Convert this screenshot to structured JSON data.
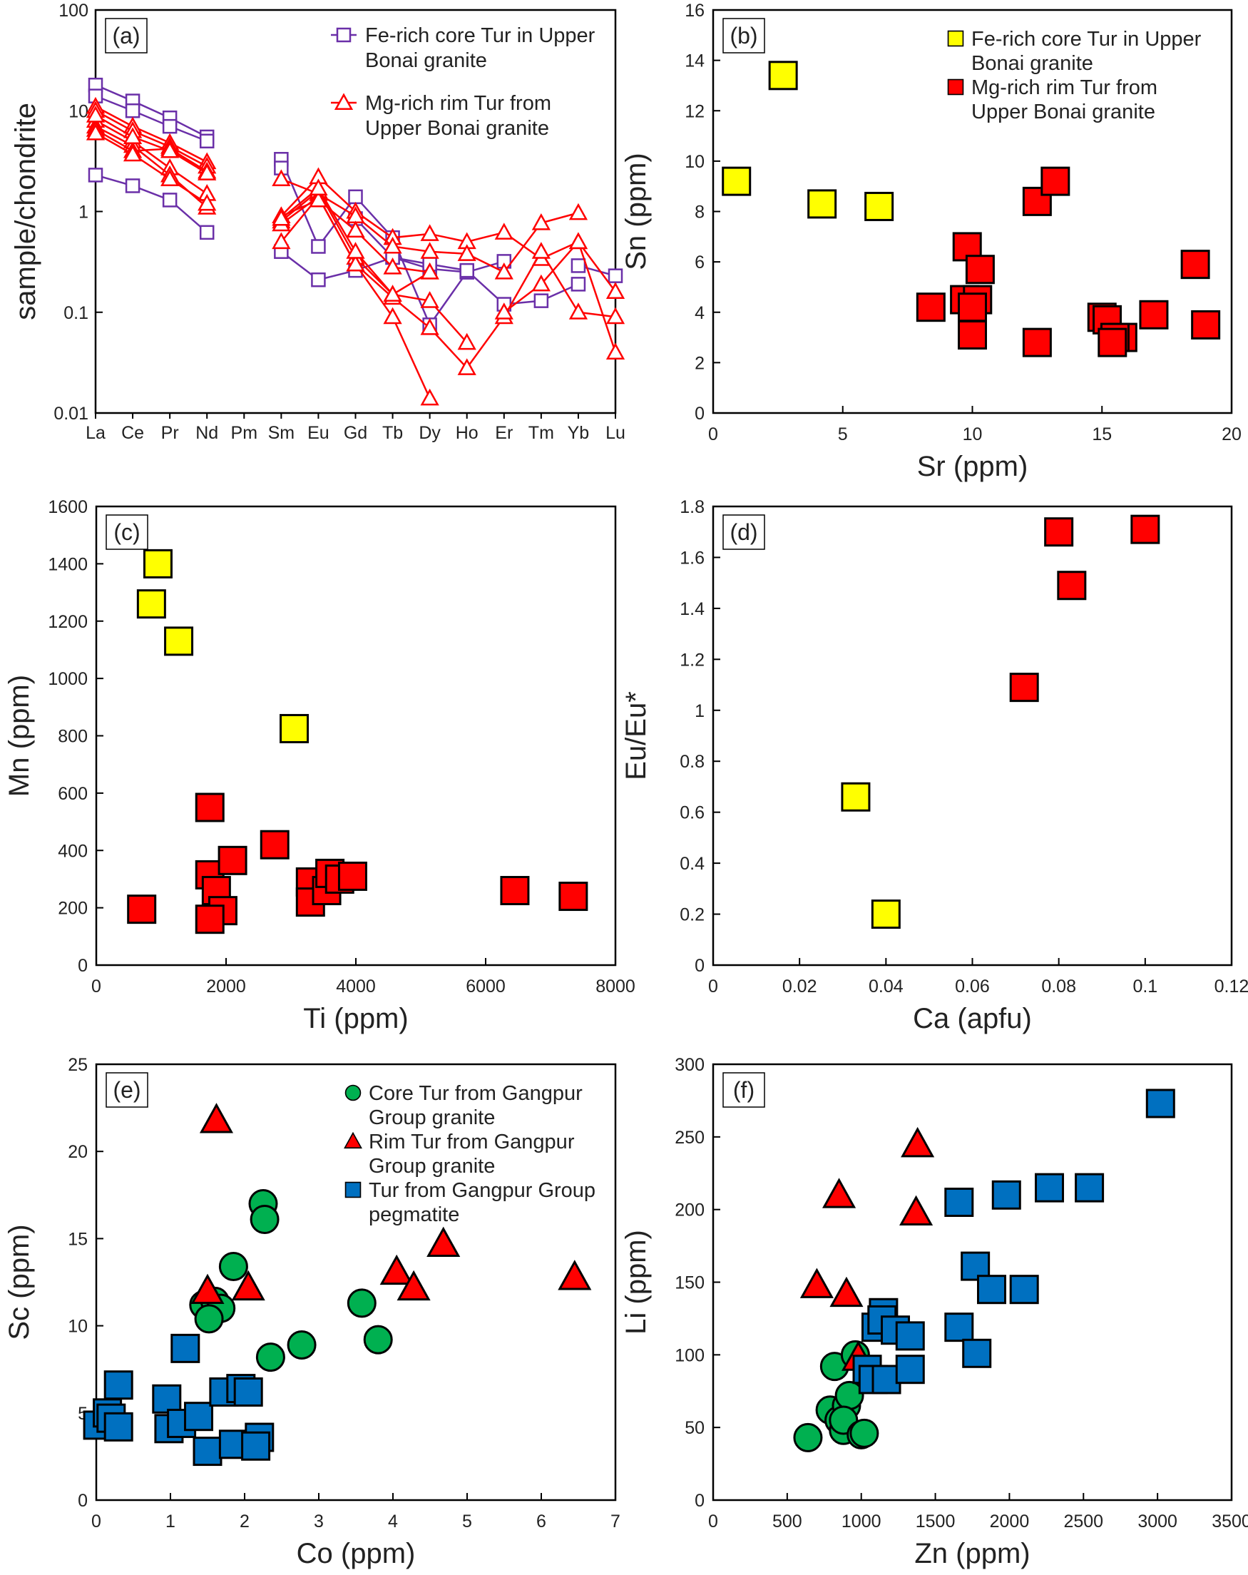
{
  "chart_data": [
    {
      "panel": "(a)",
      "type": "line",
      "ylabel": "sample/chondrite",
      "xlabel": "",
      "yscale": "log",
      "ylim": [
        0.01,
        100
      ],
      "yticks": [
        "0.01",
        "0.1",
        "1",
        "10",
        "100"
      ],
      "categories": [
        "La",
        "Ce",
        "Pr",
        "Nd",
        "Pm",
        "Sm",
        "Eu",
        "Gd",
        "Tb",
        "Dy",
        "Ho",
        "Er",
        "Tm",
        "Yb",
        "Lu"
      ],
      "legend": [
        "Fe-rich core Tur in Upper",
        "Bonai granite",
        "Mg-rich rim Tur from",
        "Upper Bonai granite"
      ],
      "groups": [
        {
          "color": "#6a2fa8",
          "marker": "open-square",
          "series": [
            [
              18,
              12.5,
              8.5,
              5.5,
              null,
              3.3,
              0.45,
              1.4,
              0.55,
              0.075,
              0.25,
              0.32,
              null,
              0.29,
              0.23
            ],
            [
              14,
              10,
              7,
              5,
              null,
              2.7,
              null,
              0.85,
              0.35,
              0.27,
              0.25,
              null,
              null,
              null,
              null
            ],
            [
              2.3,
              1.8,
              1.3,
              0.62,
              null,
              0.4,
              0.21,
              0.26,
              0.35,
              0.3,
              0.26,
              0.12,
              0.13,
              0.19,
              null
            ]
          ]
        },
        {
          "color": "#ff0000",
          "marker": "open-triangle",
          "series": [
            [
              11,
              7,
              4.8,
              3.1,
              null,
              0.9,
              2.2,
              1.0,
              0.55,
              0.6,
              0.5,
              0.62,
              0.34,
              0.5,
              0.16
            ],
            [
              10,
              6.3,
              4.4,
              2.8,
              null,
              2.1,
              1.5,
              0.9,
              0.45,
              0.4,
              0.38,
              0.25,
              0.77,
              0.97,
              null
            ],
            [
              8,
              5,
              2.7,
              1.5,
              null,
              0.8,
              1.6,
              0.35,
              0.15,
              0.13,
              0.05,
              null,
              null,
              null,
              null
            ],
            [
              7,
              4.5,
              2.3,
              1.1,
              null,
              0.5,
              1.4,
              0.3,
              0.09,
              0.014,
              null,
              null,
              null,
              null,
              null
            ],
            [
              6.5,
              4,
              4.2,
              2.5,
              null,
              0.75,
              1.4,
              0.3,
              0.14,
              0.07,
              0.028,
              0.09,
              0.4,
              0.1,
              0.09
            ],
            [
              6,
              3.7,
              2.1,
              1.2,
              null,
              0.9,
              1.3,
              0.65,
              0.28,
              0.25,
              null,
              0.1,
              0.19,
              0.5,
              0.04
            ],
            [
              9,
              5.5,
              4,
              2.4,
              null,
              0.85,
              1.7,
              0.4,
              0.15,
              0.25,
              null,
              null,
              null,
              null,
              null
            ]
          ]
        }
      ]
    },
    {
      "panel": "(b)",
      "type": "scatter",
      "xlabel": "Sr (ppm)",
      "ylabel": "Sn (ppm)",
      "xlim": [
        0,
        20
      ],
      "ylim": [
        0,
        16
      ],
      "xticks": [
        0,
        5,
        10,
        15,
        20
      ],
      "yticks": [
        0,
        2,
        4,
        6,
        8,
        10,
        12,
        14,
        16
      ],
      "legend": [
        "Fe-rich core Tur in Upper",
        "Bonai granite",
        "Mg-rich rim Tur from",
        "Upper Bonai granite"
      ],
      "series": [
        {
          "color": "#ffff00",
          "marker": "square",
          "points": [
            [
              0.9,
              9.2
            ],
            [
              2.7,
              13.4
            ],
            [
              4.2,
              8.3
            ],
            [
              6.4,
              8.2
            ]
          ]
        },
        {
          "color": "#ff0000",
          "marker": "square",
          "points": [
            [
              8.4,
              4.2
            ],
            [
              9.8,
              6.6
            ],
            [
              9.7,
              4.5
            ],
            [
              10.2,
              4.5
            ],
            [
              10,
              4.2
            ],
            [
              10.3,
              5.7
            ],
            [
              10,
              3.1
            ],
            [
              12.5,
              8.4
            ],
            [
              13.2,
              9.2
            ],
            [
              12.5,
              2.8
            ],
            [
              15,
              3.8
            ],
            [
              15.2,
              3.7
            ],
            [
              15.8,
              3.0
            ],
            [
              15.5,
              3.0
            ],
            [
              15.4,
              2.8
            ],
            [
              17,
              3.9
            ],
            [
              18.6,
              5.9
            ],
            [
              19,
              3.5
            ]
          ]
        }
      ]
    },
    {
      "panel": "(c)",
      "type": "scatter",
      "xlabel": "Ti (ppm)",
      "ylabel": "Mn (ppm)",
      "xlim": [
        0,
        8000
      ],
      "ylim": [
        0,
        1600
      ],
      "xticks": [
        0,
        2000,
        4000,
        6000,
        8000
      ],
      "yticks": [
        0,
        200,
        400,
        600,
        800,
        1000,
        1200,
        1400,
        1600
      ],
      "series": [
        {
          "color": "#ffff00",
          "marker": "square",
          "points": [
            [
              950,
              1400
            ],
            [
              850,
              1260
            ],
            [
              1270,
              1130
            ],
            [
              3050,
              825
            ]
          ]
        },
        {
          "color": "#ff0000",
          "marker": "square",
          "points": [
            [
              700,
              195
            ],
            [
              1750,
              550
            ],
            [
              1750,
              315
            ],
            [
              1850,
              260
            ],
            [
              2100,
              365
            ],
            [
              1950,
              190
            ],
            [
              1750,
              160
            ],
            [
              2750,
              420
            ],
            [
              3300,
              290
            ],
            [
              3300,
              220
            ],
            [
              3550,
              260
            ],
            [
              3600,
              320
            ],
            [
              3750,
              300
            ],
            [
              3950,
              310
            ],
            [
              6450,
              260
            ],
            [
              7350,
              240
            ]
          ]
        }
      ]
    },
    {
      "panel": "(d)",
      "type": "scatter",
      "xlabel": "Ca (apfu)",
      "ylabel": "Eu/Eu*",
      "xlim": [
        0,
        0.12
      ],
      "ylim": [
        0,
        1.8
      ],
      "xticks": [
        "0",
        "0.02",
        "0.04",
        "0.06",
        "0.08",
        "0.1",
        "0.12"
      ],
      "yticks": [
        "0",
        "0.2",
        "0.4",
        "0.6",
        "0.8",
        "1",
        "1.2",
        "1.4",
        "1.6",
        "1.8"
      ],
      "series": [
        {
          "color": "#ffff00",
          "marker": "square",
          "points": [
            [
              0.033,
              0.66
            ],
            [
              0.04,
              0.2
            ]
          ]
        },
        {
          "color": "#ff0000",
          "marker": "square",
          "points": [
            [
              0.08,
              1.7
            ],
            [
              0.1,
              1.71
            ],
            [
              0.083,
              1.49
            ],
            [
              0.072,
              1.09
            ]
          ]
        }
      ]
    },
    {
      "panel": "(e)",
      "type": "scatter",
      "xlabel": "Co (ppm)",
      "ylabel": "Sc (ppm)",
      "xlim": [
        0,
        7
      ],
      "ylim": [
        0,
        25
      ],
      "xticks": [
        0,
        1,
        2,
        3,
        4,
        5,
        6,
        7
      ],
      "yticks": [
        0,
        5,
        10,
        15,
        20,
        25
      ],
      "legend": [
        "Core Tur from Gangpur",
        "Group granite",
        "Rim Tur from Gangpur",
        "Group granite",
        "Tur from Gangpur Group",
        "pegmatite"
      ],
      "series": [
        {
          "color": "#00b050",
          "marker": "circle",
          "points": [
            [
              2.25,
              17
            ],
            [
              2.27,
              16.1
            ],
            [
              1.85,
              13.4
            ],
            [
              1.45,
              11.2
            ],
            [
              1.6,
              11.4
            ],
            [
              1.68,
              11
            ],
            [
              1.52,
              10.4
            ],
            [
              3.58,
              11.3
            ],
            [
              2.77,
              8.9
            ],
            [
              2.35,
              8.2
            ],
            [
              3.8,
              9.2
            ]
          ]
        },
        {
          "color": "#ff0000",
          "marker": "triangle",
          "points": [
            [
              1.62,
              21.8
            ],
            [
              1.5,
              12
            ],
            [
              2.05,
              12.2
            ],
            [
              4.05,
              13.1
            ],
            [
              4.28,
              12.2
            ],
            [
              4.68,
              14.7
            ],
            [
              6.45,
              12.8
            ]
          ]
        },
        {
          "color": "#0070c0",
          "marker": "square",
          "points": [
            [
              0.3,
              6.6
            ],
            [
              0.02,
              4.3
            ],
            [
              0.15,
              5
            ],
            [
              0.2,
              4.7
            ],
            [
              0.3,
              4.2
            ],
            [
              1.2,
              8.7
            ],
            [
              0.95,
              5.8
            ],
            [
              0.98,
              4.1
            ],
            [
              1.15,
              4.4
            ],
            [
              1.38,
              4.8
            ],
            [
              1.72,
              6.2
            ],
            [
              1.95,
              6.4
            ],
            [
              2.05,
              6.2
            ],
            [
              1.5,
              2.8
            ],
            [
              1.85,
              3.2
            ],
            [
              2.2,
              3.6
            ],
            [
              2.15,
              3.1
            ]
          ]
        }
      ]
    },
    {
      "panel": "(f)",
      "type": "scatter",
      "xlabel": "Zn (ppm)",
      "ylabel": "Li (ppm)",
      "xlim": [
        0,
        3500
      ],
      "ylim": [
        0,
        300
      ],
      "xticks": [
        0,
        500,
        1000,
        1500,
        2000,
        2500,
        3000,
        3500
      ],
      "yticks": [
        0,
        50,
        100,
        150,
        200,
        250,
        300
      ],
      "series": [
        {
          "color": "#00b050",
          "marker": "circle",
          "points": [
            [
              640,
              43
            ],
            [
              790,
              62
            ],
            [
              820,
              92
            ],
            [
              850,
              55
            ],
            [
              880,
              48
            ],
            [
              900,
              65
            ],
            [
              920,
              72
            ],
            [
              880,
              55
            ],
            [
              960,
              100
            ],
            [
              1000,
              45
            ],
            [
              1020,
              46
            ]
          ]
        },
        {
          "color": "#ff0000",
          "marker": "triangle",
          "points": [
            [
              700,
              148
            ],
            [
              850,
              210
            ],
            [
              900,
              142
            ],
            [
              1380,
              245
            ],
            [
              1370,
              198
            ],
            [
              980,
              98
            ]
          ]
        },
        {
          "color": "#0070c0",
          "marker": "square",
          "points": [
            [
              1100,
              119
            ],
            [
              1150,
              129
            ],
            [
              1140,
              124
            ],
            [
              1230,
              117
            ],
            [
              1330,
              113
            ],
            [
              1040,
              90
            ],
            [
              1080,
              83
            ],
            [
              1170,
              83
            ],
            [
              1330,
              90
            ],
            [
              1660,
              205
            ],
            [
              1980,
              210
            ],
            [
              2270,
              215
            ],
            [
              2540,
              215
            ],
            [
              1770,
              161
            ],
            [
              1880,
              145
            ],
            [
              2100,
              145
            ],
            [
              1660,
              119
            ],
            [
              1780,
              101
            ],
            [
              3020,
              273
            ]
          ]
        }
      ]
    }
  ]
}
